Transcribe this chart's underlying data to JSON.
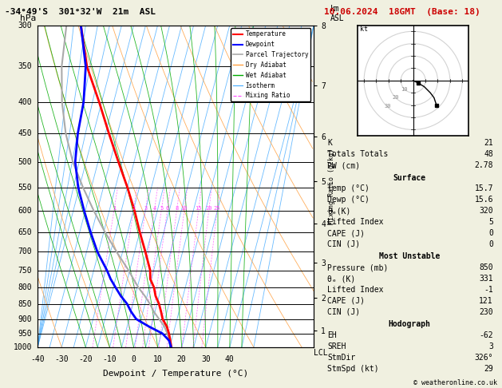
{
  "title_left": "-34°49'S  301°32'W  21m  ASL",
  "title_right": "10.06.2024  18GMT  (Base: 18)",
  "xlabel": "Dewpoint / Temperature (°C)",
  "pressure_ticks": [
    300,
    350,
    400,
    450,
    500,
    550,
    600,
    650,
    700,
    750,
    800,
    850,
    900,
    950,
    1000
  ],
  "temp_xlim": [
    -40,
    40
  ],
  "temp_xticks": [
    -40,
    -30,
    -20,
    -10,
    0,
    10,
    20,
    30,
    40
  ],
  "km_ticks": [
    1,
    2,
    3,
    4,
    5,
    6,
    7,
    8
  ],
  "km_pressures": [
    933,
    815,
    705,
    600,
    505,
    420,
    340,
    265
  ],
  "mixing_ratio_levels": [
    1,
    2,
    3,
    4,
    5,
    6,
    8,
    10,
    15,
    20,
    25
  ],
  "skew": 35,
  "temperature_profile": {
    "pressure": [
      1000,
      975,
      950,
      925,
      900,
      875,
      850,
      825,
      800,
      775,
      750,
      700,
      650,
      600,
      550,
      500,
      450,
      400,
      350,
      300
    ],
    "temp": [
      15.7,
      14.5,
      13.2,
      11.5,
      9.0,
      7.5,
      5.8,
      3.5,
      2.0,
      -0.5,
      -1.5,
      -5.5,
      -10.0,
      -14.5,
      -20.0,
      -26.5,
      -33.5,
      -41.0,
      -50.0,
      -57.0
    ]
  },
  "dewpoint_profile": {
    "pressure": [
      1000,
      975,
      950,
      925,
      900,
      875,
      850,
      825,
      800,
      775,
      750,
      700,
      650,
      600,
      550,
      500,
      450,
      400,
      350,
      300
    ],
    "temp": [
      15.6,
      14.0,
      10.5,
      4.0,
      -2.0,
      -5.0,
      -7.5,
      -11.0,
      -14.0,
      -17.0,
      -19.5,
      -25.5,
      -30.5,
      -35.5,
      -40.5,
      -44.5,
      -46.5,
      -47.5,
      -50.5,
      -57.0
    ]
  },
  "parcel_trajectory": {
    "pressure": [
      1000,
      975,
      950,
      925,
      900,
      875,
      850,
      825,
      800,
      775,
      750,
      700,
      650,
      600,
      550,
      500,
      450,
      400,
      350,
      300
    ],
    "temp": [
      15.7,
      14.2,
      12.5,
      10.5,
      7.5,
      4.5,
      2.0,
      -1.0,
      -4.5,
      -7.5,
      -10.5,
      -17.5,
      -24.5,
      -31.5,
      -38.5,
      -45.5,
      -51.5,
      -56.5,
      -60.5,
      -63.0
    ]
  },
  "bg_color": "#f0f0e0",
  "temp_color": "#ff0000",
  "dewpoint_color": "#0000ff",
  "parcel_color": "#aaaaaa",
  "dry_adiabat_color": "#ffa040",
  "wet_adiabat_color": "#00aa00",
  "isotherm_color": "#44aaff",
  "mixing_ratio_color": "#ff44ff",
  "info_panel": {
    "K": 21,
    "Totals_Totals": 48,
    "PW_cm": 2.78,
    "Surface_Temp": 15.7,
    "Surface_Dewp": 15.6,
    "Surface_ThetaE": 320,
    "Surface_LI": 5,
    "Surface_CAPE": 0,
    "Surface_CIN": 0,
    "MU_Pressure": 850,
    "MU_ThetaE": 331,
    "MU_LI": -1,
    "MU_CAPE": 121,
    "MU_CIN": 230,
    "Hodo_EH": -62,
    "Hodo_SREH": 3,
    "Hodo_StmDir": "326°",
    "Hodo_StmSpd": 29
  }
}
